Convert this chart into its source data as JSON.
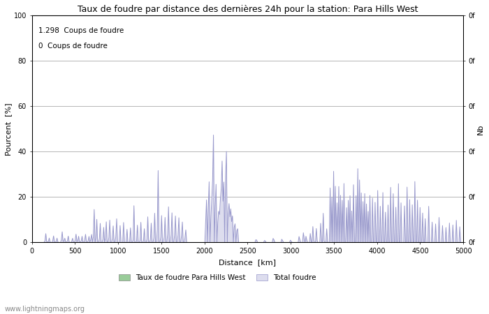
{
  "title": "Taux de foudre par distance des dernières 24h pour la station: Para Hills West",
  "xlabel": "Distance  [km]",
  "ylabel": "Pourcent  [%]",
  "ylabel_right": "Nb",
  "annotation1": "1.298  Coups de foudre",
  "annotation2": "0  Coups de foudre",
  "footer": "www.lightningmaps.org",
  "xlim": [
    0,
    5000
  ],
  "ylim": [
    0,
    100
  ],
  "legend_label1": "Taux de foudre Para Hills West",
  "legend_label2": "Total foudre",
  "line_color": "#9999cc",
  "fill_color_total": "#ddddee",
  "fill_color_station": "#99cc99",
  "right_ytick_labels": [
    "0f",
    "0f",
    "0f",
    "0f",
    "0f",
    "0f"
  ],
  "right_ytick_positions": [
    100,
    80,
    60,
    40,
    20,
    0
  ],
  "background_color": "#ffffff",
  "grid_color": "#999999",
  "figwidth": 7.0,
  "figheight": 4.5,
  "dpi": 100
}
